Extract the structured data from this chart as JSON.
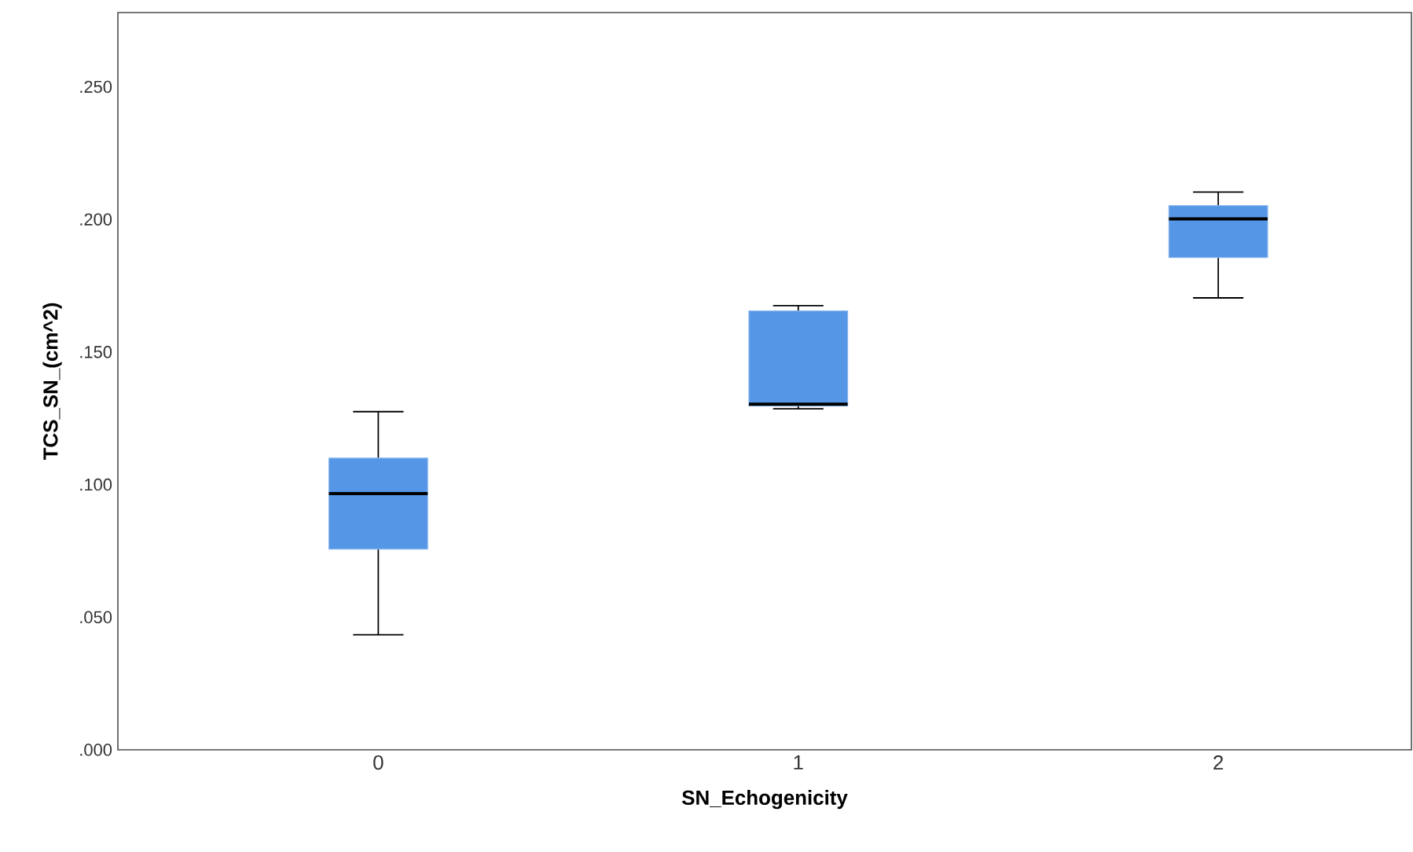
{
  "chart_data": {
    "type": "box",
    "xlabel": "SN_Echogenicity",
    "ylabel": "TCS_SN_(cm^2)",
    "categories": [
      "0",
      "1",
      "2"
    ],
    "color": "#5596e6",
    "boxes": [
      {
        "low": 0.0434,
        "q1": 0.0757,
        "median": 0.0966,
        "q3": 0.11,
        "high": 0.1275
      },
      {
        "low": 0.1286,
        "q1": 0.1297,
        "median": 0.1303,
        "q3": 0.1655,
        "high": 0.1675
      },
      {
        "low": 0.1704,
        "q1": 0.1856,
        "median": 0.2002,
        "q3": 0.2052,
        "high": 0.2103
      }
    ],
    "ylim": [
      0,
      0.278
    ],
    "yticks": [
      {
        "value": 0,
        "label": ".000"
      },
      {
        "value": 0.05,
        "label": ".050"
      },
      {
        "value": 0.1,
        "label": ".100"
      },
      {
        "value": 0.15,
        "label": ".150"
      },
      {
        "value": 0.2,
        "label": ".200"
      },
      {
        "value": 0.25,
        "label": ".250"
      }
    ],
    "grid": false
  }
}
